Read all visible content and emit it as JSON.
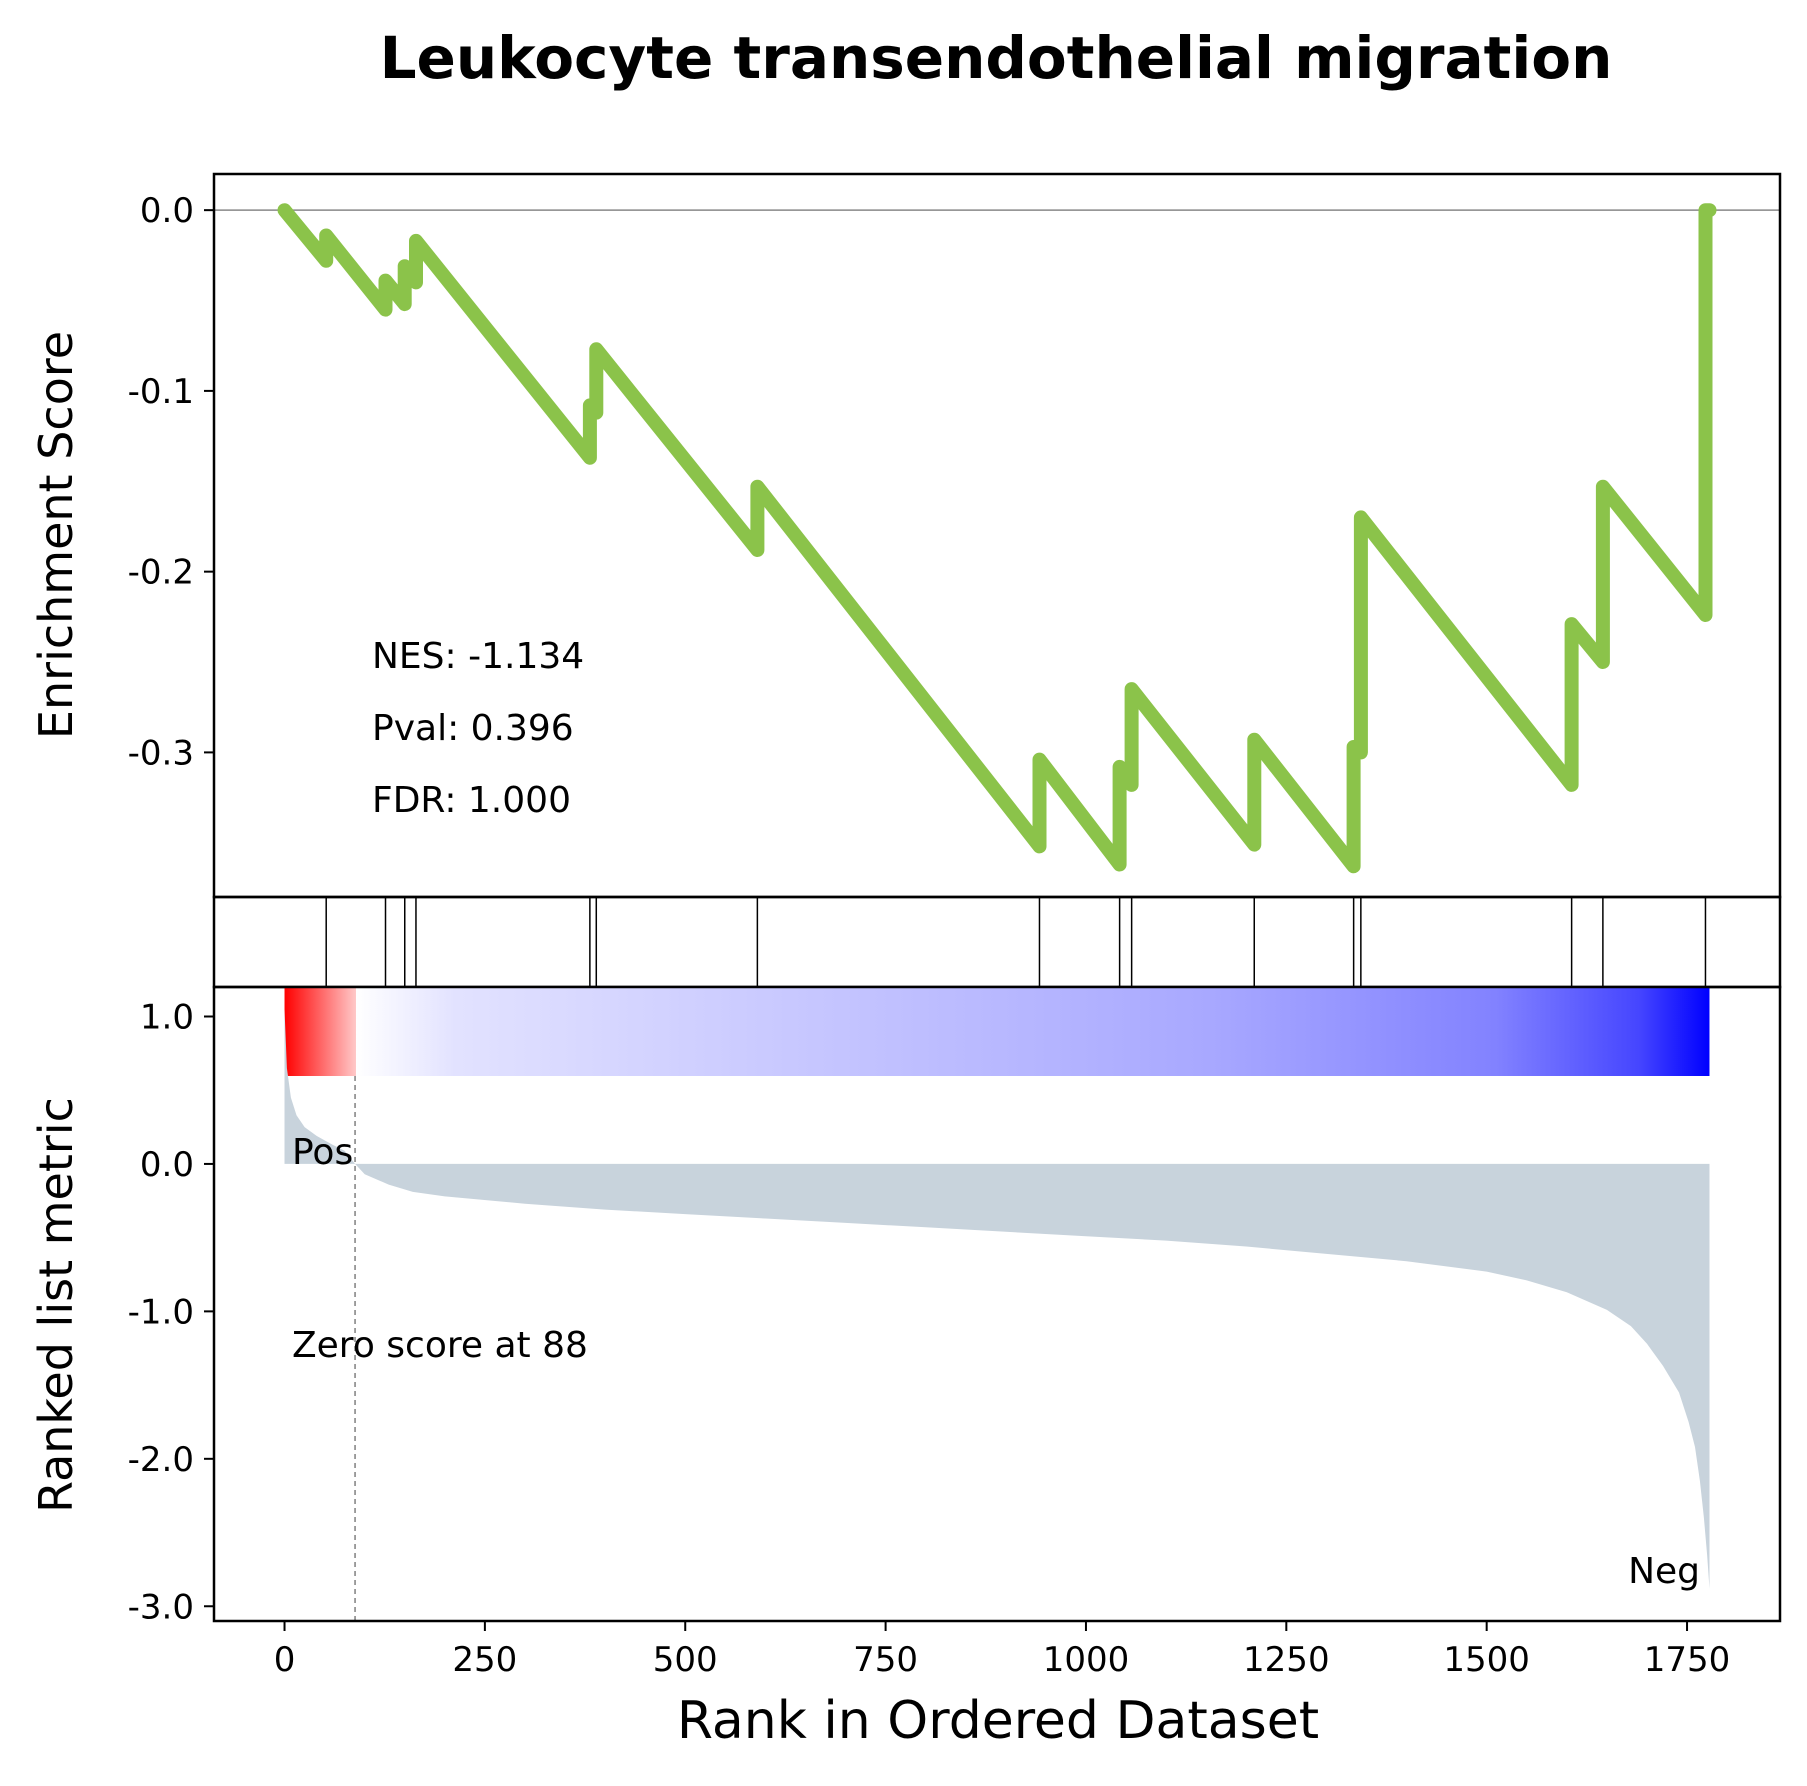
{
  "chart_data": {
    "type": "line",
    "title": "Leukocyte transendothelial migration",
    "xlabel": "Rank in Ordered Dataset",
    "xlim": [
      -88,
      1866
    ],
    "xticks": [
      0,
      250,
      500,
      750,
      1000,
      1250,
      1500,
      1750
    ],
    "xtick_labels": [
      "0",
      "250",
      "500",
      "750",
      "1000",
      "1250",
      "1500",
      "1750"
    ],
    "enrichment": {
      "ylabel": "Enrichment Score",
      "ylim": [
        -0.38,
        0.02
      ],
      "yticks": [
        0.0,
        -0.1,
        -0.2,
        -0.3
      ],
      "ytick_labels": [
        "0.0",
        "-0.1",
        "-0.2",
        "-0.3"
      ],
      "line_color": "#8bc34a",
      "points": [
        [
          0,
          0.0
        ],
        [
          52,
          -0.028
        ],
        [
          52,
          -0.014
        ],
        [
          126,
          -0.055
        ],
        [
          126,
          -0.039
        ],
        [
          150,
          -0.052
        ],
        [
          150,
          -0.031
        ],
        [
          164,
          -0.04
        ],
        [
          164,
          -0.017
        ],
        [
          381,
          -0.137
        ],
        [
          381,
          -0.108
        ],
        [
          389,
          -0.112
        ],
        [
          389,
          -0.077
        ],
        [
          590,
          -0.188
        ],
        [
          590,
          -0.153
        ],
        [
          942,
          -0.352
        ],
        [
          942,
          -0.304
        ],
        [
          1042,
          -0.362
        ],
        [
          1042,
          -0.308
        ],
        [
          1057,
          -0.318
        ],
        [
          1057,
          -0.265
        ],
        [
          1210,
          -0.351
        ],
        [
          1210,
          -0.293
        ],
        [
          1334,
          -0.363
        ],
        [
          1334,
          -0.297
        ],
        [
          1343,
          -0.3
        ],
        [
          1343,
          -0.17
        ],
        [
          1606,
          -0.318
        ],
        [
          1606,
          -0.229
        ],
        [
          1645,
          -0.25
        ],
        [
          1645,
          -0.153
        ],
        [
          1773,
          -0.224
        ],
        [
          1773,
          0.0
        ],
        [
          1778,
          0.0
        ]
      ],
      "stats": [
        {
          "label": "NES: -1.134"
        },
        {
          "label": "Pval: 0.396"
        },
        {
          "label": "FDR: 1.000"
        }
      ]
    },
    "hits": [
      52,
      126,
      150,
      164,
      381,
      389,
      590,
      942,
      1042,
      1057,
      1210,
      1334,
      1343,
      1606,
      1645,
      1773
    ],
    "ranked_metric": {
      "ylabel": "Ranked list metric",
      "ylim": [
        -3.1,
        1.2
      ],
      "yticks": [
        1.0,
        0.0,
        -1.0,
        -2.0,
        -3.0
      ],
      "ytick_labels": [
        "1.0",
        "0.0",
        "-1.0",
        "-2.0",
        "-3.0"
      ],
      "fill_color": "#c8d3dc",
      "curve": [
        [
          0,
          1.05
        ],
        [
          3,
          0.65
        ],
        [
          8,
          0.45
        ],
        [
          15,
          0.33
        ],
        [
          25,
          0.25
        ],
        [
          40,
          0.19
        ],
        [
          60,
          0.13
        ],
        [
          75,
          0.09
        ],
        [
          88,
          0.0
        ],
        [
          100,
          -0.07
        ],
        [
          130,
          -0.14
        ],
        [
          160,
          -0.19
        ],
        [
          200,
          -0.22
        ],
        [
          300,
          -0.27
        ],
        [
          400,
          -0.31
        ],
        [
          500,
          -0.34
        ],
        [
          600,
          -0.37
        ],
        [
          700,
          -0.4
        ],
        [
          800,
          -0.43
        ],
        [
          900,
          -0.46
        ],
        [
          1000,
          -0.49
        ],
        [
          1100,
          -0.52
        ],
        [
          1200,
          -0.56
        ],
        [
          1300,
          -0.61
        ],
        [
          1400,
          -0.66
        ],
        [
          1500,
          -0.73
        ],
        [
          1550,
          -0.79
        ],
        [
          1600,
          -0.87
        ],
        [
          1650,
          -0.99
        ],
        [
          1680,
          -1.1
        ],
        [
          1700,
          -1.22
        ],
        [
          1720,
          -1.37
        ],
        [
          1740,
          -1.55
        ],
        [
          1752,
          -1.75
        ],
        [
          1760,
          -1.92
        ],
        [
          1766,
          -2.15
        ],
        [
          1771,
          -2.4
        ],
        [
          1775,
          -2.65
        ],
        [
          1778,
          -2.88
        ]
      ],
      "zero_score_rank": 88,
      "zero_score_label": "Zero score at 88",
      "pos_label": "Pos",
      "neg_label": "Neg",
      "pos_color": "#ff0000",
      "neg_color": "#0000ff"
    }
  }
}
